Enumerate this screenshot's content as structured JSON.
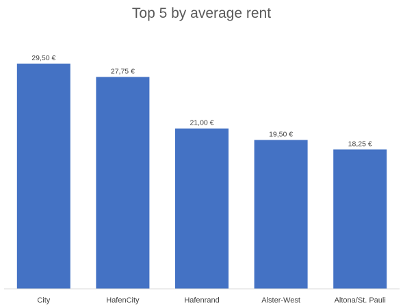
{
  "chart_data": {
    "type": "bar",
    "title": "Top 5 by average rent",
    "categories": [
      "City",
      "HafenCity",
      "Hafenrand",
      "Alster-West",
      "Altona/St. Pauli"
    ],
    "values": [
      29.5,
      27.75,
      21.0,
      19.5,
      18.25
    ],
    "data_labels": [
      "29,50 €",
      "27,75 €",
      "21,00 €",
      "19,50 €",
      "18,25 €"
    ],
    "ylim": [
      0,
      32
    ],
    "grid": false,
    "bar_color": "#4472C4",
    "axis_color": "#D9D9D9"
  }
}
